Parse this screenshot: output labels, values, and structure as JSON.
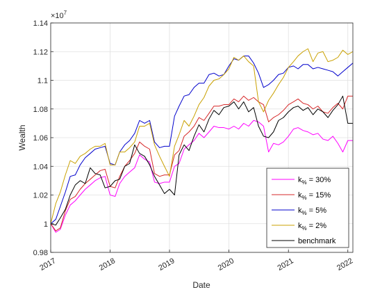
{
  "chart_data": {
    "type": "line",
    "xlabel": "Date",
    "ylabel": "Wealth",
    "y_exponent_label": "×10",
    "y_exponent_power": "7",
    "xlim": [
      "2017-01-01",
      "2022-02-01"
    ],
    "ylim": [
      0.98,
      1.14
    ],
    "x_ticks": [
      {
        "label": "2017",
        "date": "2017-01-01"
      },
      {
        "label": "2018",
        "date": "2018-01-01"
      },
      {
        "label": "2019",
        "date": "2019-01-01"
      },
      {
        "label": "2020",
        "date": "2020-01-01"
      },
      {
        "label": "2021",
        "date": "2021-01-01"
      },
      {
        "label": "2022",
        "date": "2022-01-01"
      }
    ],
    "y_ticks": [
      {
        "label": "0.98",
        "value": 0.98
      },
      {
        "label": "1",
        "value": 1.0
      },
      {
        "label": "1.02",
        "value": 1.02
      },
      {
        "label": "1.04",
        "value": 1.04
      },
      {
        "label": "1.06",
        "value": 1.06
      },
      {
        "label": "1.08",
        "value": 1.08
      },
      {
        "label": "1.1",
        "value": 1.1
      },
      {
        "label": "1.12",
        "value": 1.12
      },
      {
        "label": "1.14",
        "value": 1.14
      }
    ],
    "grid": true,
    "legend_position": "bottom-right",
    "x": [
      "2017-01",
      "2017-02",
      "2017-03",
      "2017-04",
      "2017-05",
      "2017-06",
      "2017-07",
      "2017-08",
      "2017-09",
      "2017-10",
      "2017-11",
      "2017-12",
      "2018-01",
      "2018-02",
      "2018-03",
      "2018-04",
      "2018-05",
      "2018-06",
      "2018-07",
      "2018-08",
      "2018-09",
      "2018-10",
      "2018-11",
      "2018-12",
      "2019-01",
      "2019-02",
      "2019-03",
      "2019-04",
      "2019-05",
      "2019-06",
      "2019-07",
      "2019-08",
      "2019-09",
      "2019-10",
      "2019-11",
      "2019-12",
      "2020-01",
      "2020-02",
      "2020-03",
      "2020-04",
      "2020-05",
      "2020-06",
      "2020-07",
      "2020-08",
      "2020-09",
      "2020-10",
      "2020-11",
      "2020-12",
      "2021-01",
      "2021-02",
      "2021-03",
      "2021-04",
      "2021-05",
      "2021-06",
      "2021-07",
      "2021-08",
      "2021-09",
      "2021-10",
      "2021-11",
      "2021-12",
      "2022-01",
      "2022-02"
    ],
    "series": [
      {
        "name_main": "k",
        "name_sub": "%",
        "name_rest": " = 30%",
        "color": "#ff00ff",
        "values": [
          1.0,
          0.994,
          0.996,
          1.006,
          1.013,
          1.016,
          1.02,
          1.024,
          1.027,
          1.03,
          1.032,
          1.033,
          1.02,
          1.019,
          1.028,
          1.033,
          1.036,
          1.039,
          1.048,
          1.045,
          1.043,
          1.029,
          1.028,
          1.029,
          1.029,
          1.04,
          1.042,
          1.052,
          1.055,
          1.058,
          1.063,
          1.06,
          1.064,
          1.068,
          1.067,
          1.067,
          1.066,
          1.068,
          1.066,
          1.07,
          1.068,
          1.072,
          1.071,
          1.068,
          1.05,
          1.056,
          1.055,
          1.057,
          1.061,
          1.066,
          1.067,
          1.065,
          1.064,
          1.062,
          1.063,
          1.059,
          1.058,
          1.061,
          1.056,
          1.05,
          1.058,
          1.058
        ]
      },
      {
        "name_main": "k",
        "name_sub": "%",
        "name_rest": " = 15%",
        "color": "#d62728",
        "values": [
          1.0,
          0.995,
          0.997,
          1.009,
          1.017,
          1.019,
          1.024,
          1.028,
          1.031,
          1.034,
          1.037,
          1.038,
          1.026,
          1.025,
          1.033,
          1.04,
          1.044,
          1.049,
          1.057,
          1.054,
          1.052,
          1.035,
          1.033,
          1.034,
          1.034,
          1.048,
          1.051,
          1.061,
          1.064,
          1.068,
          1.074,
          1.072,
          1.077,
          1.082,
          1.082,
          1.083,
          1.083,
          1.087,
          1.085,
          1.089,
          1.086,
          1.088,
          1.085,
          1.083,
          1.071,
          1.074,
          1.076,
          1.079,
          1.083,
          1.085,
          1.087,
          1.084,
          1.083,
          1.08,
          1.082,
          1.078,
          1.077,
          1.081,
          1.084,
          1.08,
          1.089,
          1.089
        ]
      },
      {
        "name_main": "k",
        "name_sub": "%",
        "name_rest": " = 5%",
        "color": "#0000cc",
        "values": [
          1.0,
          1.003,
          1.012,
          1.022,
          1.033,
          1.034,
          1.041,
          1.046,
          1.049,
          1.052,
          1.053,
          1.054,
          1.042,
          1.041,
          1.05,
          1.055,
          1.058,
          1.063,
          1.072,
          1.07,
          1.072,
          1.057,
          1.053,
          1.054,
          1.054,
          1.075,
          1.082,
          1.089,
          1.09,
          1.095,
          1.098,
          1.098,
          1.104,
          1.105,
          1.103,
          1.104,
          1.11,
          1.115,
          1.114,
          1.117,
          1.117,
          1.112,
          1.105,
          1.095,
          1.097,
          1.1,
          1.104,
          1.105,
          1.109,
          1.11,
          1.108,
          1.111,
          1.111,
          1.108,
          1.109,
          1.108,
          1.107,
          1.106,
          1.103,
          1.106,
          1.109,
          1.112
        ]
      },
      {
        "name_main": "k",
        "name_sub": "%",
        "name_rest": " = 2%",
        "color": "#c9a000",
        "values": [
          1.0,
          1.014,
          1.022,
          1.034,
          1.044,
          1.042,
          1.047,
          1.049,
          1.052,
          1.054,
          1.054,
          1.056,
          1.041,
          1.041,
          1.05,
          1.05,
          1.053,
          1.057,
          1.068,
          1.068,
          1.07,
          1.055,
          1.047,
          1.04,
          1.033,
          1.054,
          1.062,
          1.072,
          1.068,
          1.075,
          1.083,
          1.088,
          1.096,
          1.1,
          1.101,
          1.104,
          1.108,
          1.116,
          1.114,
          1.117,
          1.113,
          1.11,
          1.085,
          1.078,
          1.086,
          1.091,
          1.097,
          1.102,
          1.109,
          1.113,
          1.117,
          1.12,
          1.122,
          1.113,
          1.119,
          1.12,
          1.113,
          1.114,
          1.116,
          1.121,
          1.118,
          1.12
        ]
      },
      {
        "name": "benchmark",
        "color": "#000000",
        "values": [
          1.0,
          0.999,
          1.004,
          1.01,
          1.02,
          1.027,
          1.03,
          1.028,
          1.039,
          1.035,
          1.034,
          1.025,
          1.026,
          1.03,
          1.031,
          1.04,
          1.042,
          1.055,
          1.049,
          1.047,
          1.041,
          1.033,
          1.027,
          1.021,
          1.024,
          1.02,
          1.048,
          1.055,
          1.051,
          1.061,
          1.069,
          1.064,
          1.073,
          1.079,
          1.076,
          1.081,
          1.082,
          1.085,
          1.08,
          1.085,
          1.078,
          1.081,
          1.068,
          1.061,
          1.06,
          1.064,
          1.072,
          1.074,
          1.078,
          1.081,
          1.082,
          1.079,
          1.081,
          1.076,
          1.08,
          1.078,
          1.074,
          1.079,
          1.083,
          1.089,
          1.07,
          1.07
        ]
      }
    ]
  }
}
